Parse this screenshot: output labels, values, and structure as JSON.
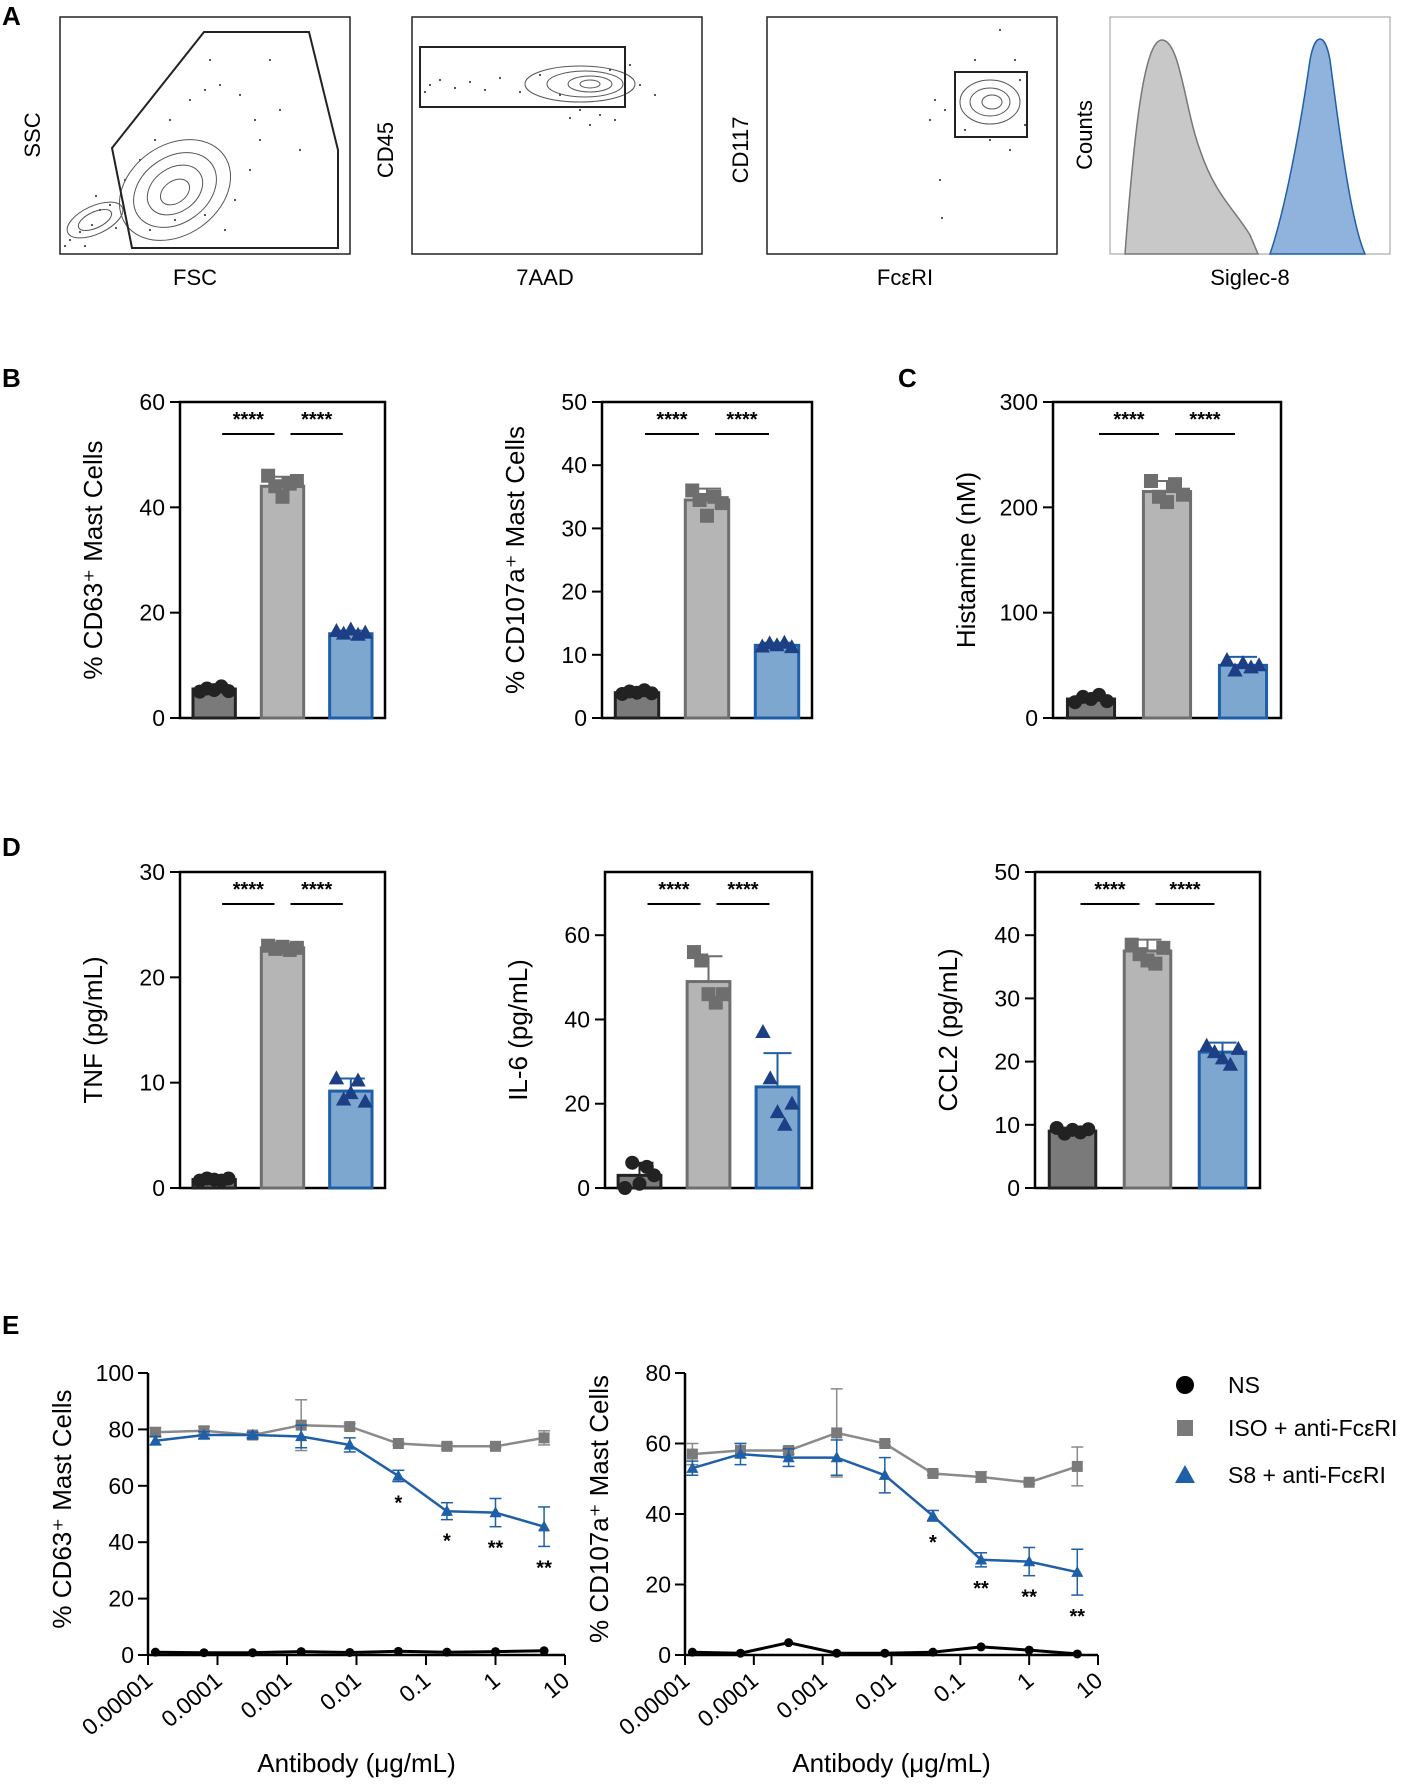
{
  "panels": {
    "a": "A",
    "b": "B",
    "c": "C",
    "d": "D",
    "e": "E"
  },
  "colors": {
    "ns": "#7a7a7a",
    "iso": "#b5b5b5",
    "s8": "#7ea7d0",
    "iso_line": "#8a8a8a",
    "s8_line": "#1f5fa8",
    "s8_dark": "#1c3f86",
    "hist_gray": "#c8c8c8",
    "hist_blue": "#8fb3dd"
  },
  "flow": [
    {
      "xlabel": "FSC",
      "ylabel": "SSC"
    },
    {
      "xlabel": "7AAD",
      "ylabel": "CD45"
    },
    {
      "xlabel": "FcεRI",
      "ylabel": "CD117"
    },
    {
      "xlabel": "Siglec-8",
      "ylabel": "Counts"
    }
  ],
  "chart_data": [
    {
      "type": "bar",
      "id": "cd63",
      "ylabel": "% CD63⁺ Mast Cells",
      "categories": [
        "NS",
        "ISO + anti-FcεRI",
        "S8 + anti-FcεRI"
      ],
      "values": [
        5.5,
        44,
        16
      ],
      "errors": [
        0.6,
        1.8,
        0.6
      ],
      "ylim": [
        0,
        60
      ],
      "ticks": [
        0,
        20,
        40,
        60
      ],
      "tick_labels": [
        "0",
        "20",
        "40",
        "60"
      ],
      "points": [
        [
          5,
          5.6,
          5.3,
          6,
          5.1
        ],
        [
          46,
          44,
          42,
          44.5,
          45
        ],
        [
          16.5,
          16,
          16.8,
          15.8,
          16.2
        ]
      ],
      "significance": [
        "****",
        "****"
      ]
    },
    {
      "type": "bar",
      "id": "cd107a",
      "ylabel": "% CD107a⁺ Mast Cells",
      "categories": [
        "NS",
        "ISO + anti-FcεRI",
        "S8 + anti-FcεRI"
      ],
      "values": [
        4,
        34.5,
        11.5
      ],
      "errors": [
        0.4,
        1.8,
        0.4
      ],
      "ylim": [
        0,
        50
      ],
      "ticks": [
        0,
        10,
        20,
        30,
        40,
        50
      ],
      "tick_labels": [
        "0",
        "10",
        "20",
        "30",
        "40",
        "50"
      ],
      "points": [
        [
          3.8,
          4.2,
          4.0,
          4.4,
          3.9
        ],
        [
          36,
          34.5,
          32,
          35,
          34
        ],
        [
          11.3,
          11.8,
          11.5,
          11.9,
          11.2
        ]
      ],
      "significance": [
        "****",
        "****"
      ]
    },
    {
      "type": "bar",
      "id": "histamine",
      "ylabel": "Histamine (nM)",
      "categories": [
        "NS",
        "ISO + anti-FcεRI",
        "S8 + anti-FcεRI"
      ],
      "values": [
        18,
        215,
        50
      ],
      "errors": [
        3,
        10,
        8
      ],
      "ylim": [
        0,
        300
      ],
      "ticks": [
        0,
        100,
        200,
        300
      ],
      "tick_labels": [
        "0",
        "100",
        "200",
        "300"
      ],
      "points": [
        [
          15,
          20,
          18,
          22,
          16
        ],
        [
          225,
          210,
          205,
          222,
          212
        ],
        [
          55,
          45,
          52,
          48,
          50
        ]
      ],
      "significance": [
        "****",
        "****"
      ]
    },
    {
      "type": "bar",
      "id": "tnf",
      "ylabel": "TNF (pg/mL)",
      "categories": [
        "NS",
        "ISO + anti-FcεRI",
        "S8 + anti-FcεRI"
      ],
      "values": [
        0.8,
        22.8,
        9.2
      ],
      "errors": [
        0.2,
        0.2,
        1.2
      ],
      "ylim": [
        0,
        30
      ],
      "ticks": [
        0,
        10,
        20,
        30
      ],
      "tick_labels": [
        "0",
        "10",
        "20",
        "30"
      ],
      "points": [
        [
          0.7,
          0.9,
          0.8,
          0.7,
          0.9
        ],
        [
          23,
          22.7,
          22.9,
          22.6,
          22.8
        ],
        [
          10.4,
          8.4,
          9.0,
          10.2,
          8.2
        ]
      ],
      "significance": [
        "****",
        "****"
      ]
    },
    {
      "type": "bar",
      "id": "il6",
      "ylabel": "IL-6 (pg/mL)",
      "categories": [
        "NS",
        "ISO + anti-FcεRI",
        "S8 + anti-FcεRI"
      ],
      "values": [
        3,
        49,
        24
      ],
      "errors": [
        3,
        6,
        8
      ],
      "ylim": [
        0,
        75
      ],
      "ticks": [
        0,
        20,
        40,
        60
      ],
      "tick_labels": [
        "0",
        "20",
        "40",
        "60"
      ],
      "points": [
        [
          0,
          6,
          1,
          5,
          3
        ],
        [
          56,
          54,
          46,
          44,
          46
        ],
        [
          37,
          26,
          18,
          15,
          20
        ]
      ],
      "significance": [
        "****",
        "****"
      ]
    },
    {
      "type": "bar",
      "id": "ccl2",
      "ylabel": "CCL2 (pg/mL)",
      "categories": [
        "NS",
        "ISO + anti-FcεRI",
        "S8 + anti-FcεRI"
      ],
      "values": [
        9,
        37.5,
        21.5
      ],
      "errors": [
        0.5,
        1.8,
        1.5
      ],
      "ylim": [
        0,
        50
      ],
      "ticks": [
        0,
        10,
        20,
        30,
        40,
        50
      ],
      "tick_labels": [
        "0",
        "10",
        "20",
        "30",
        "40",
        "50"
      ],
      "points": [
        [
          9.5,
          8.6,
          9.2,
          8.8,
          9.3
        ],
        [
          38.5,
          37,
          36,
          35.5,
          38
        ],
        [
          22.5,
          21.5,
          20.5,
          19.5,
          22
        ]
      ],
      "significance": [
        "****",
        "****"
      ]
    },
    {
      "type": "line",
      "id": "dose-cd63",
      "xscale": "log",
      "xlabel": "Antibody (μg/mL)",
      "ylabel": "% CD63⁺ Mast Cells",
      "xticks": [
        1e-05,
        0.0001,
        0.001,
        0.01,
        0.1,
        1,
        10
      ],
      "xtick_labels": [
        "0.00001",
        "0.0001",
        "0.001",
        "0.01",
        "0.1",
        "1",
        "10"
      ],
      "ylim": [
        0,
        100
      ],
      "yticks": [
        0,
        20,
        40,
        60,
        80,
        100
      ],
      "ytick_labels": [
        "0",
        "20",
        "40",
        "60",
        "80",
        "100"
      ],
      "x": [
        1.28e-05,
        6.4e-05,
        0.00032,
        0.0016,
        0.008,
        0.04,
        0.2,
        1,
        5
      ],
      "series": [
        {
          "name": "NS",
          "values": [
            1,
            0.8,
            0.8,
            1.2,
            0.9,
            1.3,
            1,
            1.2,
            1.5
          ],
          "errors": [
            0,
            0,
            0,
            0,
            0,
            0,
            0,
            0,
            0
          ]
        },
        {
          "name": "ISO + anti-FcεRI",
          "values": [
            79,
            79.5,
            78,
            81.5,
            81,
            75,
            74,
            74,
            77
          ],
          "errors": [
            1.5,
            1.5,
            1,
            9,
            1,
            0.5,
            1,
            0.5,
            2.5
          ]
        },
        {
          "name": "S8 + anti-FcεRI",
          "values": [
            76,
            78,
            78,
            77.5,
            74.5,
            63.5,
            51,
            50.5,
            45.5
          ],
          "errors": [
            1.5,
            1.2,
            1,
            4,
            2.5,
            2,
            3,
            5,
            7
          ]
        }
      ],
      "significance": [
        {
          "x": 0.04,
          "label": "*"
        },
        {
          "x": 0.2,
          "label": "*"
        },
        {
          "x": 1,
          "label": "**"
        },
        {
          "x": 5,
          "label": "**"
        }
      ]
    },
    {
      "type": "line",
      "id": "dose-cd107a",
      "xscale": "log",
      "xlabel": "Antibody (μg/mL)",
      "ylabel": "% CD107a⁺ Mast Cells",
      "xticks": [
        1e-05,
        0.0001,
        0.001,
        0.01,
        0.1,
        1,
        10
      ],
      "xtick_labels": [
        "0.00001",
        "0.0001",
        "0.001",
        "0.01",
        "0.1",
        "1",
        "10"
      ],
      "ylim": [
        0,
        80
      ],
      "yticks": [
        0,
        20,
        40,
        60,
        80
      ],
      "ytick_labels": [
        "0",
        "20",
        "40",
        "60",
        "80"
      ],
      "x": [
        1.28e-05,
        6.4e-05,
        0.00032,
        0.0016,
        0.008,
        0.04,
        0.2,
        1,
        5
      ],
      "series": [
        {
          "name": "NS",
          "values": [
            0.8,
            0.5,
            3.5,
            0.5,
            0.5,
            0.8,
            2.3,
            1.4,
            0.3
          ],
          "errors": [
            0,
            0,
            0,
            0,
            0,
            0,
            0,
            0,
            0
          ]
        },
        {
          "name": "ISO + anti-FcεRI",
          "values": [
            57,
            58,
            58,
            63,
            60,
            51.5,
            50.5,
            49,
            53.5
          ],
          "errors": [
            3,
            2,
            1,
            12.5,
            0.5,
            0.5,
            1.5,
            0.5,
            5.5
          ]
        },
        {
          "name": "S8 + anti-FcεRI",
          "values": [
            53,
            57,
            56,
            56,
            51,
            39.5,
            27,
            26.5,
            23.5
          ],
          "errors": [
            2,
            3,
            2.5,
            5,
            5,
            1.5,
            2,
            4,
            6.5
          ]
        }
      ],
      "significance": [
        {
          "x": 0.04,
          "label": "*"
        },
        {
          "x": 0.2,
          "label": "**"
        },
        {
          "x": 1,
          "label": "**"
        },
        {
          "x": 5,
          "label": "**"
        }
      ]
    }
  ],
  "legend": [
    {
      "name": "NS",
      "marker": "circle"
    },
    {
      "name": "ISO + anti-FcεRI",
      "marker": "square"
    },
    {
      "name": "S8 + anti-FcεRI",
      "marker": "triangle"
    }
  ]
}
